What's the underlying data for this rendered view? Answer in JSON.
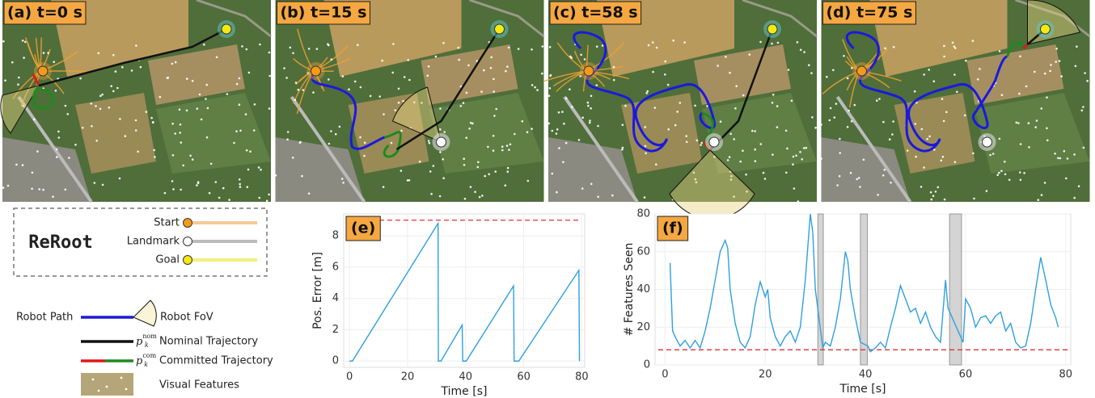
{
  "panels": [
    {
      "label": "(a) t=0 s"
    },
    {
      "label": "(b) t=15 s"
    },
    {
      "label": "(c) t=58 s"
    },
    {
      "label": "(d) t=75 s"
    }
  ],
  "legend": {
    "method": "ReRoot",
    "start": "Start",
    "landmark": "Landmark",
    "goal": "Goal",
    "robot_path": "Robot Path",
    "robot_fov": "Robot FoV",
    "nominal_symbol": {
      "base": "p",
      "sub": "k",
      "sup": "nom"
    },
    "nominal": "Nominal Trajectory",
    "committed_symbol": {
      "base": "p",
      "sub": "k",
      "sup": "com"
    },
    "committed": "Committed Trajectory",
    "features": "Visual Features"
  },
  "chart_data": [
    {
      "type": "line",
      "label": "(e)",
      "x_label": "Time [s]",
      "y_label": "Pos. Error [m]",
      "xlim": [
        -2,
        81
      ],
      "ylim": [
        -0.4,
        9.4
      ],
      "xticks": [
        0,
        20,
        40,
        60,
        80
      ],
      "yticks": [
        0,
        2,
        4,
        6,
        8
      ],
      "grid": true,
      "x": [
        0,
        1,
        30.5,
        30.6,
        31.5,
        38.8,
        39,
        40.2,
        56.5,
        56.7,
        58.3,
        79,
        79.2
      ],
      "series": [
        {
          "color": "#2ea0e0",
          "values": [
            0,
            0,
            8.8,
            0,
            0,
            2.3,
            0,
            0,
            4.8,
            0,
            0,
            5.8,
            0
          ]
        }
      ],
      "hlines": [
        {
          "value": 9,
          "color": "#e0303a"
        }
      ]
    },
    {
      "type": "line",
      "label": "(f)",
      "x_label": "Time [s]",
      "y_label": "# Features Seen",
      "xlim": [
        -2,
        81
      ],
      "ylim": [
        0,
        80
      ],
      "xticks": [
        0,
        20,
        40,
        60,
        80
      ],
      "yticks": [
        0,
        20,
        40,
        60,
        80
      ],
      "grid": true,
      "x": [
        1,
        1.5,
        2,
        3,
        4,
        5,
        6,
        7,
        8,
        9,
        10,
        11,
        12,
        12.5,
        13,
        14,
        15,
        16,
        17,
        18,
        19,
        20,
        20.5,
        21,
        22,
        23,
        24,
        25,
        26,
        27,
        28,
        29,
        29.5,
        30,
        31.5,
        32,
        33,
        34,
        35,
        36,
        36.5,
        37,
        38,
        39,
        40.5,
        41,
        42,
        43,
        44,
        45,
        46,
        47,
        48,
        49,
        50,
        51,
        52,
        53,
        54,
        55,
        56,
        56.5,
        59.5,
        60,
        61,
        62,
        63,
        64,
        65,
        66,
        67,
        68,
        69,
        70,
        71,
        72,
        73,
        74,
        75,
        76,
        77,
        78,
        78.5
      ],
      "series": [
        {
          "color": "#2ea0e0",
          "values": [
            54,
            18,
            15,
            10,
            13,
            9,
            13,
            9,
            18,
            30,
            45,
            60,
            66,
            62,
            40,
            22,
            12,
            9,
            15,
            32,
            44,
            36,
            40,
            25,
            15,
            10,
            15,
            18,
            12,
            20,
            45,
            80,
            70,
            40,
            9,
            12,
            10,
            20,
            35,
            60,
            55,
            40,
            25,
            12,
            10,
            7,
            9,
            12,
            9,
            20,
            30,
            42,
            35,
            28,
            30,
            22,
            28,
            20,
            15,
            12,
            45,
            30,
            12,
            35,
            30,
            20,
            25,
            26,
            22,
            26,
            28,
            18,
            22,
            12,
            9,
            10,
            22,
            40,
            57,
            45,
            32,
            25,
            20
          ]
        }
      ],
      "spans": [
        [
          30.5,
          31.6
        ],
        [
          39,
          40.4
        ],
        [
          56.8,
          59.2
        ]
      ],
      "hlines": [
        {
          "value": 8,
          "color": "#e0303a"
        }
      ]
    }
  ]
}
